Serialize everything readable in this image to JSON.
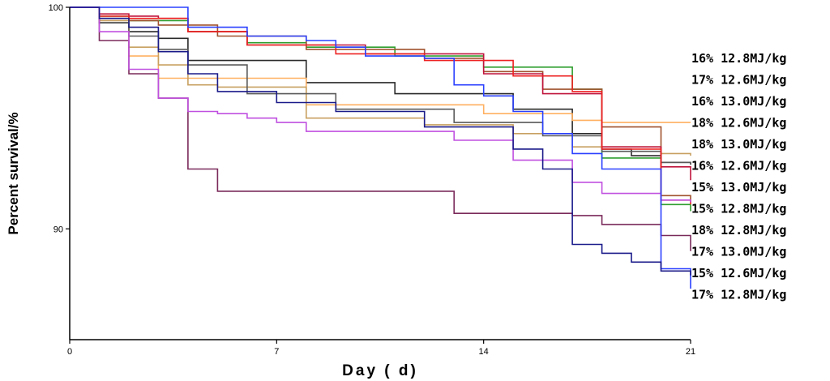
{
  "chart_data": {
    "type": "line",
    "step": true,
    "xlabel": "Day ( d)",
    "ylabel": "Percent survival/%",
    "xlim": [
      0,
      21
    ],
    "ylim": [
      85,
      100
    ],
    "xticks": [
      "0",
      "7",
      "14",
      "21"
    ],
    "yticks": [
      "90",
      "100"
    ],
    "grid": false,
    "legend_position": "right",
    "series": [
      {
        "name": "16% 12.8MJ/kg",
        "color": "#2e9e2e",
        "x": [
          0,
          1,
          2,
          4,
          6,
          8,
          11,
          14,
          17,
          18,
          20,
          21
        ],
        "y": [
          100,
          99.6,
          99.4,
          98.9,
          98.4,
          98.2,
          97.8,
          97.3,
          96.3,
          93.2,
          91.1,
          90.8
        ]
      },
      {
        "name": "17% 12.6MJ/kg",
        "color": "#a0522d",
        "x": [
          0,
          1,
          2,
          3,
          5,
          8,
          12,
          14,
          16,
          18,
          20,
          21
        ],
        "y": [
          100,
          99.5,
          99.4,
          99.2,
          98.7,
          98.1,
          97.7,
          97.1,
          96.3,
          94.6,
          91.5,
          91.2
        ]
      },
      {
        "name": "16% 13.0MJ/kg",
        "color": "#2a2a2a",
        "x": [
          0,
          1,
          2,
          3,
          4,
          8,
          11,
          15,
          17,
          18,
          19,
          20,
          21
        ],
        "y": [
          100,
          99.3,
          98.9,
          98.6,
          97.6,
          96.6,
          96.1,
          95.4,
          94.3,
          93.6,
          93.3,
          93.0,
          92.9
        ]
      },
      {
        "name": "18% 12.6MJ/kg",
        "color": "#ffb060",
        "x": [
          0,
          1,
          2,
          3,
          8,
          14,
          17,
          18,
          21
        ],
        "y": [
          100,
          99.5,
          97.8,
          96.8,
          95.6,
          95.2,
          94.9,
          94.8,
          94.8
        ]
      },
      {
        "name": "18% 13.0MJ/kg",
        "color": "#c8a060",
        "x": [
          0,
          1,
          2,
          3,
          4,
          5,
          8,
          12,
          15,
          17,
          20,
          21
        ],
        "y": [
          100,
          99.4,
          98.2,
          97.4,
          96.5,
          96.4,
          95.0,
          94.7,
          94.3,
          93.7,
          93.4,
          93.3
        ]
      },
      {
        "name": "16% 12.6MJ/kg",
        "color": "#5a5a5a",
        "x": [
          0,
          1,
          2,
          3,
          4,
          6,
          9,
          13,
          16,
          18,
          20,
          21
        ],
        "y": [
          100,
          99.3,
          98.7,
          98.1,
          97.4,
          96.1,
          95.4,
          94.8,
          94.2,
          93.5,
          93.0,
          92.9
        ]
      },
      {
        "name": "15% 13.0MJ/kg",
        "color": "#c0143c",
        "x": [
          0,
          1,
          2,
          3,
          4,
          6,
          10,
          14,
          16,
          18,
          20,
          21
        ],
        "y": [
          100,
          99.7,
          99.6,
          99.5,
          98.9,
          98.3,
          97.9,
          97.0,
          96.1,
          93.7,
          92.8,
          92.2
        ]
      },
      {
        "name": "15% 12.8MJ/kg",
        "color": "#ee2020",
        "x": [
          0,
          1,
          2,
          4,
          6,
          9,
          12,
          15,
          17,
          18,
          20,
          21
        ],
        "y": [
          100,
          99.6,
          99.5,
          98.9,
          98.3,
          97.9,
          97.6,
          96.9,
          96.2,
          93.6,
          91.3,
          91.1
        ]
      },
      {
        "name": "18% 12.8MJ/kg",
        "color": "#7a2a5a",
        "x": [
          0,
          1,
          2,
          3,
          4,
          5,
          13,
          17,
          18,
          20,
          21
        ],
        "y": [
          100,
          98.5,
          97.0,
          95.9,
          92.7,
          91.7,
          90.7,
          90.6,
          90.2,
          89.7,
          89.0
        ]
      },
      {
        "name": "17% 13.0MJ/kg",
        "color": "#c050e0",
        "x": [
          0,
          1,
          2,
          3,
          4,
          5,
          6,
          7,
          8,
          13,
          15,
          17,
          18,
          20,
          21
        ],
        "y": [
          100,
          98.9,
          97.2,
          95.9,
          95.3,
          95.2,
          95.0,
          94.8,
          94.4,
          94.0,
          93.1,
          92.1,
          91.6,
          91.3,
          91.2
        ]
      },
      {
        "name": "15% 12.6MJ/kg",
        "color": "#2a40ff",
        "x": [
          0,
          2,
          4,
          6,
          8,
          9,
          10,
          12,
          13,
          14,
          15,
          16,
          17,
          18,
          20,
          21
        ],
        "y": [
          100,
          100,
          99.1,
          98.7,
          98.5,
          98.2,
          97.8,
          97.7,
          96.5,
          96.0,
          95.3,
          94.3,
          93.4,
          92.7,
          88.2,
          87.3
        ]
      },
      {
        "name": "17% 12.8MJ/kg",
        "color": "#1a1a8a",
        "x": [
          0,
          1,
          2,
          3,
          4,
          5,
          7,
          9,
          12,
          15,
          16,
          17,
          18,
          19,
          20,
          21
        ],
        "y": [
          100,
          99.5,
          99.1,
          98.0,
          97.0,
          96.2,
          95.7,
          95.3,
          94.6,
          93.6,
          92.7,
          89.3,
          88.9,
          88.5,
          88.1,
          87.9
        ]
      }
    ]
  }
}
